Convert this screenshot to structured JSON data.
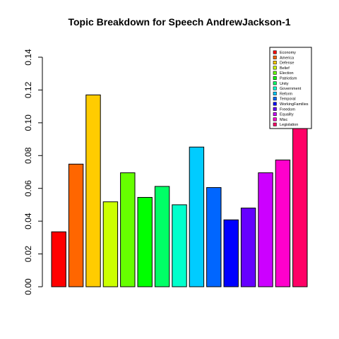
{
  "chart_data": {
    "type": "bar",
    "title": "Topic Breakdown for Speech AndrewJackson-1",
    "xlabel": "",
    "ylabel": "",
    "ylim": [
      0,
      0.14
    ],
    "yticks": [
      "0.00",
      "0.02",
      "0.04",
      "0.06",
      "0.08",
      "0.10",
      "0.12",
      "0.14"
    ],
    "grid": false,
    "legend_position": "top-right",
    "categories": [
      "Economy",
      "America",
      "Defense",
      "Belief",
      "Election",
      "Patriotism",
      "Unity",
      "Government",
      "Reform",
      "Temporal",
      "WorkingFamilies",
      "Freedom",
      "Equality",
      "Misc",
      "Legislation"
    ],
    "values": [
      0.0335,
      0.0748,
      0.117,
      0.0518,
      0.0695,
      0.0545,
      0.0612,
      0.05,
      0.0852,
      0.0605,
      0.0408,
      0.048,
      0.0695,
      0.0773,
      0.098
    ],
    "colors": [
      "#FF0000",
      "#FF6600",
      "#FFCC00",
      "#CCFF00",
      "#66FF00",
      "#00FF00",
      "#00FF66",
      "#00FFCC",
      "#00CCFF",
      "#0066FF",
      "#0000FF",
      "#6600FF",
      "#CC00FF",
      "#FF00CC",
      "#FF0066"
    ]
  }
}
